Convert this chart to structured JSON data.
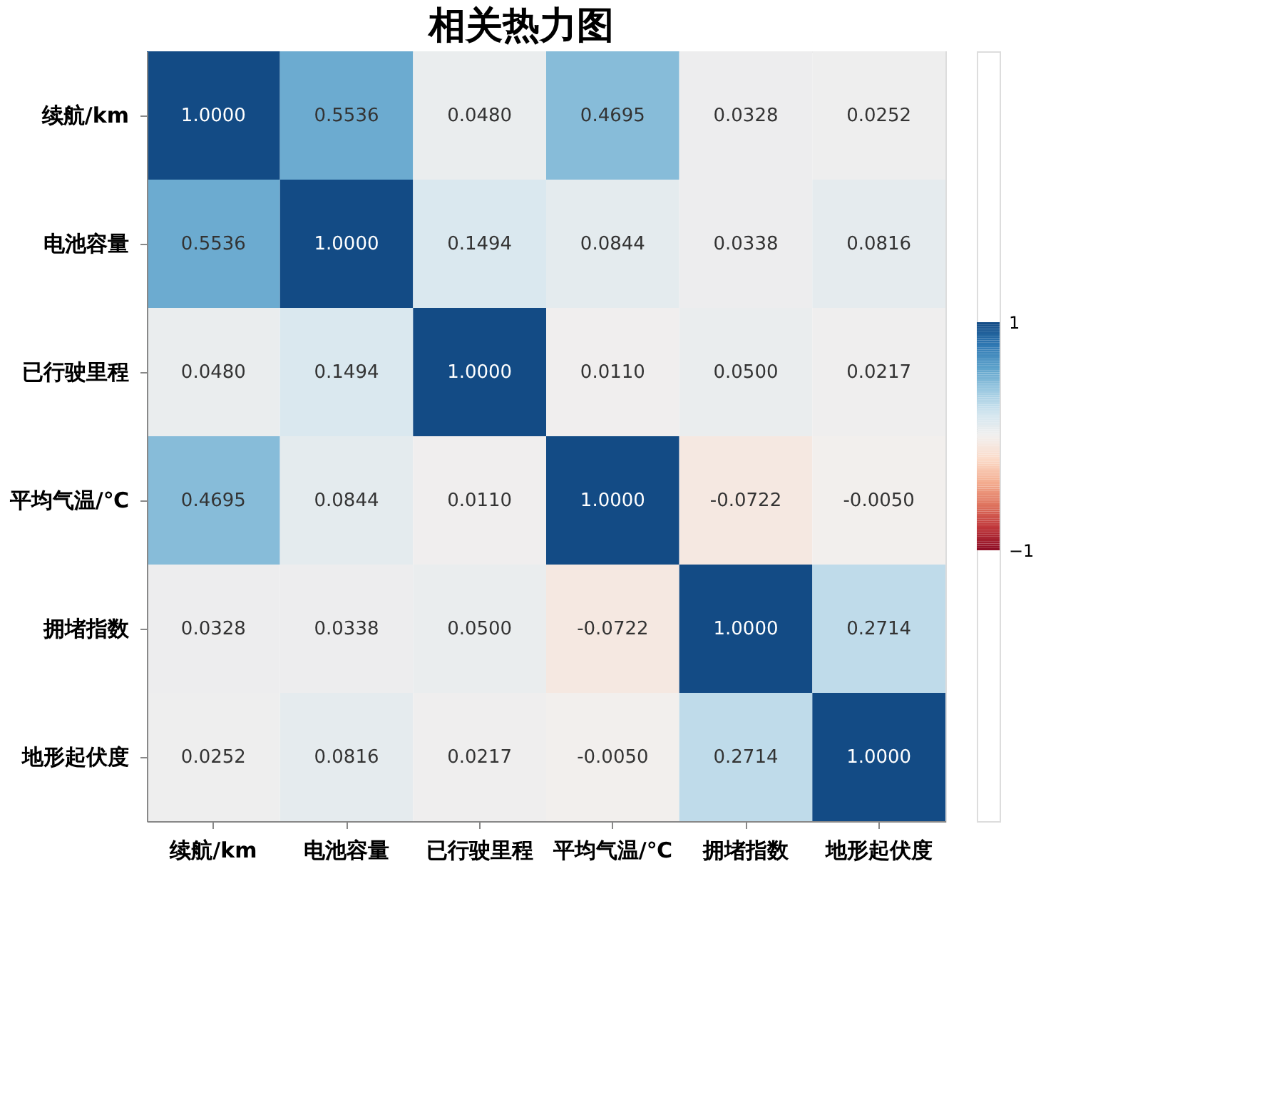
{
  "chart_data": {
    "type": "heatmap",
    "title": "相关热力图",
    "categories": [
      "续航/km",
      "电池容量",
      "已行驶里程",
      "平均气温/℃",
      "拥堵指数",
      "地形起伏度"
    ],
    "y_categories": [
      "续航/km",
      "电池容量",
      "已行驶里程",
      "平均气温/℃",
      "拥堵指数",
      "地形起伏度"
    ],
    "cells": [
      [
        1.0,
        0.5536,
        0.048,
        0.4695,
        0.0328,
        0.0252
      ],
      [
        0.5536,
        1.0,
        0.1494,
        0.0844,
        0.0338,
        0.0816
      ],
      [
        0.048,
        0.1494,
        1.0,
        0.011,
        0.05,
        0.0217
      ],
      [
        0.4695,
        0.0844,
        0.011,
        1.0,
        -0.0722,
        -0.005
      ],
      [
        0.0328,
        0.0338,
        0.05,
        -0.0722,
        1.0,
        0.2714
      ],
      [
        0.0252,
        0.0816,
        0.0217,
        -0.005,
        0.2714,
        1.0
      ]
    ],
    "cell_labels": [
      [
        "1.0000",
        "0.5536",
        "0.0480",
        "0.4695",
        "0.0328",
        "0.0252"
      ],
      [
        "0.5536",
        "1.0000",
        "0.1494",
        "0.0844",
        "0.0338",
        "0.0816"
      ],
      [
        "0.0480",
        "0.1494",
        "1.0000",
        "0.0110",
        "0.0500",
        "0.0217"
      ],
      [
        "0.4695",
        "0.0844",
        "0.0110",
        "1.0000",
        "-0.0722",
        "-0.0050"
      ],
      [
        "0.0328",
        "0.0338",
        "0.0500",
        "-0.0722",
        "1.0000",
        "0.2714"
      ],
      [
        "0.0252",
        "0.0816",
        "0.0217",
        "-0.0050",
        "0.2714",
        "1.0000"
      ]
    ],
    "clim": [
      -1,
      1
    ],
    "cticks": [
      -1,
      1
    ]
  }
}
